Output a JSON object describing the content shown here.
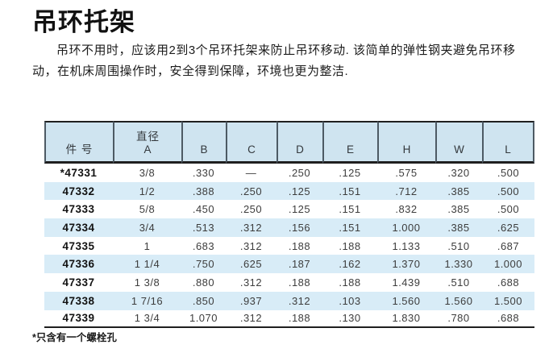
{
  "page": {
    "title": "吊环托架",
    "paragraph": "吊环不用时，应该用2到3个吊环托架来防止吊环移动. 该简单的弹性钢夹避免吊环移动，在机床周围操作时，安全得到保障，环境也更为整洁.",
    "footnote": "*只含有一个螺栓孔"
  },
  "colors": {
    "table_header_bg": "#cfe4f0",
    "row_stripe_bg": "#d8ecf7",
    "table_border_dark": "#1f1f1f",
    "header_separator": "#4d5a64",
    "value_text": "#3d3d3d"
  },
  "table": {
    "columns": [
      {
        "line1": "",
        "line2": "件 号"
      },
      {
        "line1": "直径",
        "line2": "A"
      },
      {
        "line1": "",
        "line2": "B"
      },
      {
        "line1": "",
        "line2": "C"
      },
      {
        "line1": "",
        "line2": "D"
      },
      {
        "line1": "",
        "line2": "E"
      },
      {
        "line1": "",
        "line2": "H"
      },
      {
        "line1": "",
        "line2": "W"
      },
      {
        "line1": "",
        "line2": "L"
      }
    ],
    "rows": [
      [
        "*47331",
        "3/8",
        ".330",
        "—",
        ".250",
        ".125",
        ".575",
        ".320",
        ".500"
      ],
      [
        "47332",
        "1/2",
        ".388",
        ".250",
        ".125",
        ".151",
        ".712",
        ".385",
        ".500"
      ],
      [
        "47333",
        "5/8",
        ".450",
        ".250",
        ".125",
        ".151",
        ".832",
        ".385",
        ".500"
      ],
      [
        "47334",
        "3/4",
        ".513",
        ".312",
        ".156",
        ".151",
        "1.000",
        ".385",
        ".625"
      ],
      [
        "47335",
        "1",
        ".683",
        ".312",
        ".188",
        ".188",
        "1.133",
        ".510",
        ".687"
      ],
      [
        "47336",
        "1 1/4",
        ".750",
        ".625",
        ".187",
        ".162",
        "1.370",
        "1.330",
        "1.000"
      ],
      [
        "47337",
        "1 3/8",
        ".880",
        ".312",
        ".188",
        ".188",
        "1.439",
        ".510",
        ".688"
      ],
      [
        "47338",
        "1 7/16",
        ".850",
        ".937",
        ".312",
        ".103",
        "1.560",
        "1.560",
        "1.500"
      ],
      [
        "47339",
        "1 3/4",
        "1.070",
        ".312",
        ".188",
        ".130",
        "1.830",
        ".780",
        ".688"
      ]
    ]
  }
}
